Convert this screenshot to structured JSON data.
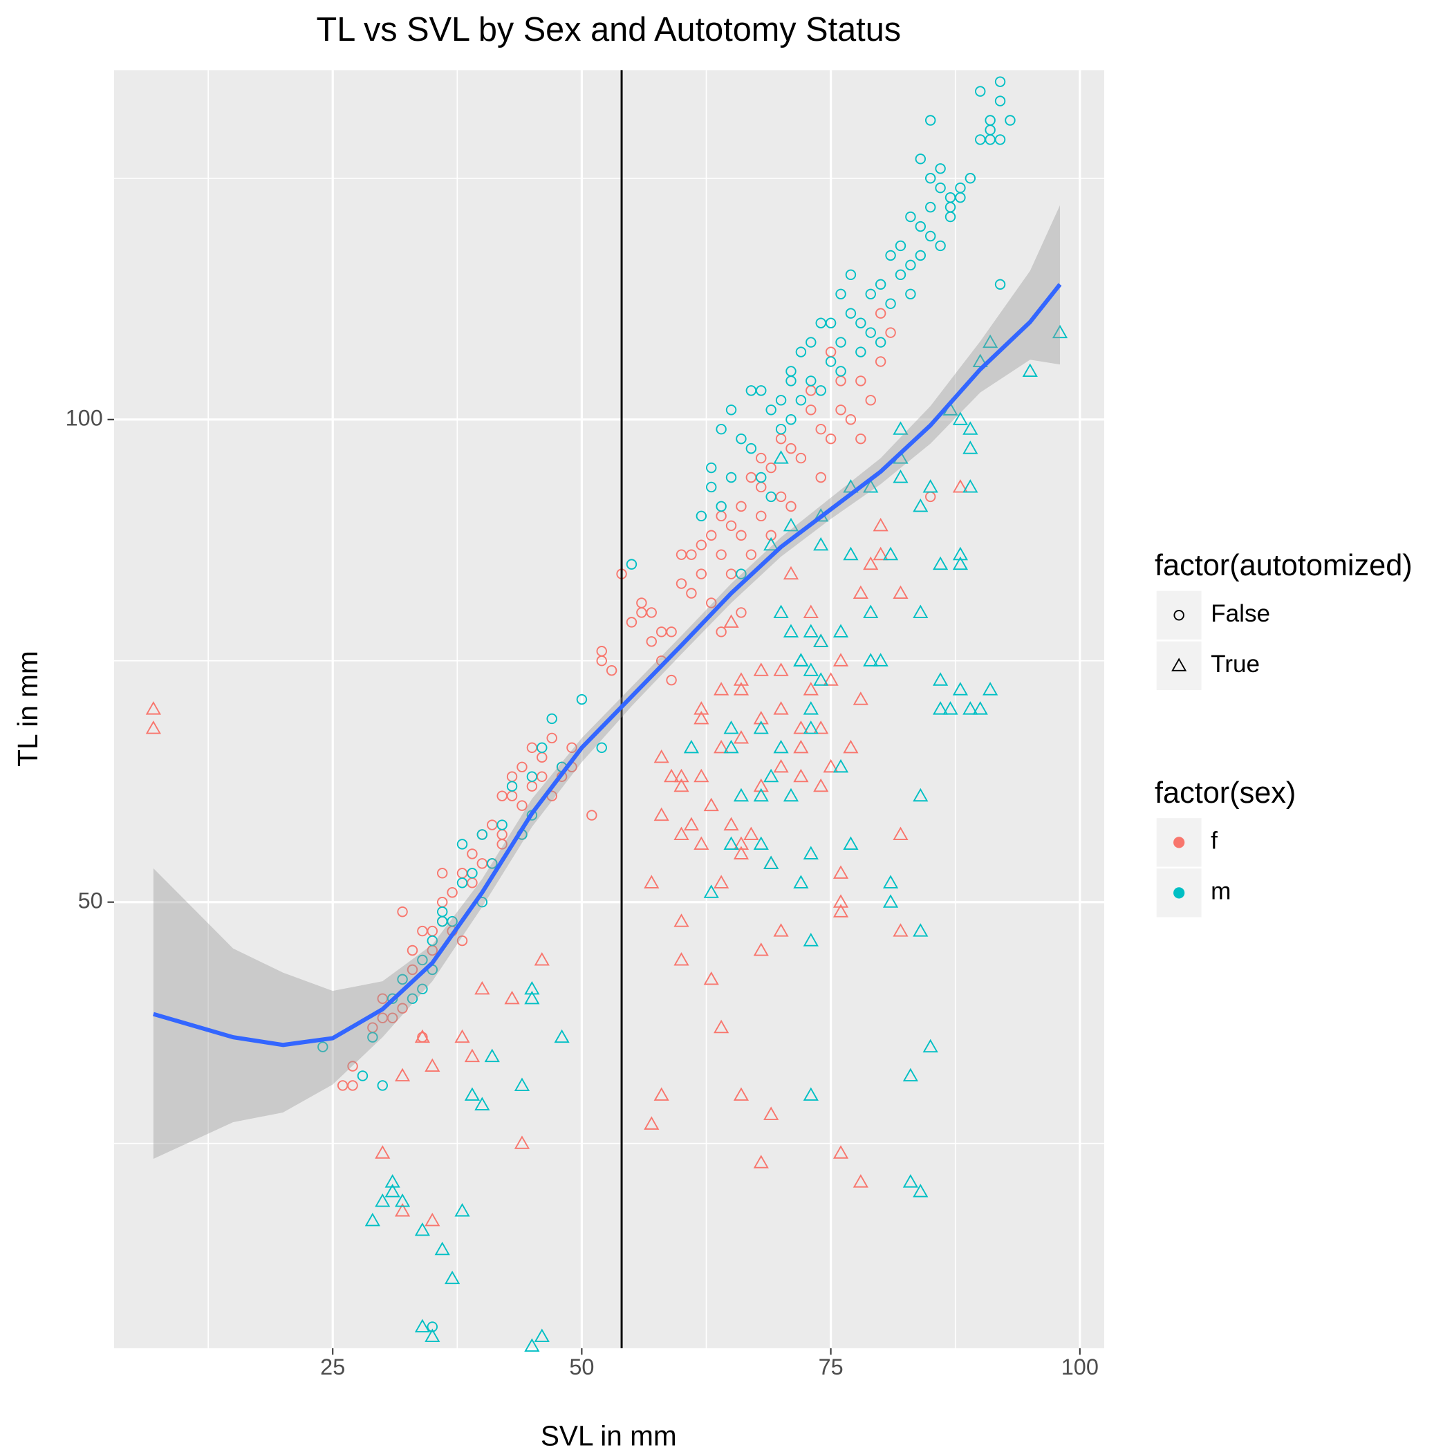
{
  "chart_data": {
    "type": "scatter",
    "title": "TL vs SVL by Sex and Autotomy Status",
    "x_label": "SVL in mm",
    "y_label": "TL in mm",
    "xlim": [
      3.05,
      102.44
    ],
    "ylim": [
      3.78,
      136.2
    ],
    "xticks": [
      25,
      50,
      75,
      100
    ],
    "yticks": [
      50,
      100
    ],
    "grid": true,
    "vline": 54,
    "legends": [
      {
        "title": "factor(autotomized)",
        "entries": [
          {
            "label": "False",
            "shape": "circle"
          },
          {
            "label": "True",
            "shape": "triangle"
          }
        ]
      },
      {
        "title": "factor(sex)",
        "entries": [
          {
            "label": "f",
            "color": "#F8766D"
          },
          {
            "label": "m",
            "color": "#00BFC4"
          }
        ]
      }
    ],
    "series": [
      {
        "color": "#F8766D",
        "shape": "circle",
        "x": [
          26,
          27,
          27,
          29,
          30,
          30,
          31,
          32,
          32,
          33,
          33,
          34,
          34,
          35,
          36,
          36,
          37,
          38,
          39,
          39,
          40,
          40,
          41,
          42,
          42,
          43,
          43,
          44,
          44,
          45,
          45,
          46,
          46,
          47,
          47,
          49,
          51,
          52,
          52,
          53,
          54,
          55,
          56,
          57,
          57,
          58,
          59,
          59,
          60,
          60,
          61,
          61,
          62,
          62,
          63,
          63,
          64,
          64,
          65,
          65,
          66,
          66,
          67,
          67,
          68,
          68,
          69,
          69,
          70,
          70,
          71,
          71,
          72,
          73,
          73,
          74,
          74,
          75,
          75,
          76,
          76,
          77,
          78,
          78,
          79,
          80,
          80,
          81,
          85,
          68,
          66,
          64,
          58,
          56,
          49,
          48,
          37,
          38,
          35,
          48,
          41,
          42,
          44,
          36
        ],
        "y": [
          31,
          31,
          33,
          37,
          38,
          40,
          38,
          39,
          49,
          43,
          45,
          47,
          36,
          45,
          50,
          53,
          51,
          53,
          52,
          55,
          54,
          57,
          58,
          57,
          61,
          61,
          63,
          60,
          64,
          62,
          66,
          63,
          65,
          67,
          61,
          64,
          59,
          75,
          76,
          74,
          84,
          79,
          80,
          80,
          77,
          75,
          78,
          73,
          83,
          86,
          82,
          86,
          84,
          87,
          81,
          88,
          86,
          90,
          84,
          89,
          88,
          91,
          86,
          94,
          90,
          93,
          95,
          88,
          92,
          98,
          91,
          97,
          96,
          101,
          103,
          99,
          94,
          98,
          107,
          104,
          101,
          100,
          104,
          98,
          102,
          106,
          111,
          109,
          92,
          96,
          80,
          78,
          78,
          81,
          66,
          63,
          47,
          46,
          47,
          64,
          54,
          56,
          57,
          48
        ]
      },
      {
        "color": "#F8766D",
        "shape": "triangle",
        "x": [
          7,
          7,
          32,
          30,
          35,
          44,
          32,
          35,
          34,
          38,
          39,
          40,
          43,
          46,
          57,
          58,
          60,
          60,
          63,
          64,
          66,
          68,
          69,
          70,
          68,
          76,
          78,
          76,
          76,
          82,
          82,
          88,
          58,
          61,
          60,
          62,
          64,
          66,
          68,
          70,
          72,
          74,
          74,
          72,
          62,
          64,
          66,
          68,
          70,
          74,
          76,
          78,
          79,
          80,
          73,
          71,
          65,
          58,
          60,
          63,
          65,
          67,
          69,
          64,
          66,
          62,
          60,
          57,
          59,
          76,
          75,
          77,
          62,
          70,
          72,
          66,
          73,
          75,
          66,
          68,
          78,
          80,
          82
        ],
        "y": [
          70,
          68,
          18,
          24,
          17,
          25,
          32,
          33,
          36,
          36,
          34,
          41,
          40,
          44,
          27,
          30,
          48,
          44,
          42,
          37,
          30,
          23,
          28,
          47,
          45,
          24,
          21,
          49,
          50,
          47,
          57,
          93,
          59,
          58,
          62,
          63,
          66,
          67,
          62,
          64,
          66,
          68,
          62,
          68,
          70,
          72,
          72,
          74,
          74,
          77,
          75,
          82,
          85,
          86,
          80,
          84,
          79,
          65,
          63,
          60,
          58,
          57,
          54,
          52,
          55,
          56,
          57,
          52,
          63,
          53,
          64,
          66,
          69,
          70,
          63,
          56,
          72,
          73,
          73,
          69,
          71,
          89,
          82
        ]
      },
      {
        "color": "#00BFC4",
        "shape": "circle",
        "x": [
          24,
          28,
          29,
          30,
          31,
          32,
          33,
          34,
          34,
          35,
          35,
          36,
          36,
          37,
          38,
          38,
          39,
          40,
          40,
          41,
          42,
          43,
          44,
          45,
          45,
          46,
          47,
          48,
          50,
          52,
          55,
          35,
          63,
          64,
          65,
          66,
          67,
          67,
          68,
          68,
          69,
          70,
          70,
          71,
          71,
          72,
          72,
          73,
          73,
          74,
          74,
          75,
          75,
          76,
          76,
          77,
          77,
          78,
          78,
          79,
          79,
          80,
          80,
          81,
          81,
          82,
          82,
          83,
          83,
          83,
          84,
          84,
          85,
          85,
          85,
          86,
          86,
          87,
          87,
          88,
          88,
          89,
          90,
          90,
          91,
          91,
          92,
          92,
          92,
          93,
          91,
          92,
          85,
          84,
          86,
          87,
          66,
          64,
          62,
          63,
          65,
          69,
          71,
          76
        ],
        "y": [
          35,
          32,
          36,
          31,
          40,
          42,
          40,
          44,
          41,
          46,
          43,
          48,
          49,
          48,
          56,
          52,
          53,
          50,
          57,
          54,
          58,
          62,
          57,
          59,
          63,
          66,
          69,
          64,
          71,
          66,
          85,
          6,
          95,
          99,
          101,
          98,
          97,
          103,
          94,
          103,
          101,
          99,
          102,
          105,
          100,
          102,
          107,
          104,
          108,
          103,
          110,
          106,
          110,
          105,
          108,
          111,
          115,
          107,
          110,
          113,
          109,
          108,
          114,
          112,
          117,
          118,
          115,
          116,
          113,
          121,
          120,
          117,
          122,
          125,
          119,
          124,
          118,
          121,
          123,
          123,
          124,
          125,
          129,
          134,
          129,
          130,
          129,
          133,
          135,
          131,
          131,
          114,
          131,
          127,
          126,
          122,
          84,
          91,
          90,
          93,
          94,
          92,
          104,
          113
        ]
      },
      {
        "color": "#00BFC4",
        "shape": "triangle",
        "x": [
          29,
          30,
          31,
          32,
          31,
          34,
          36,
          37,
          35,
          34,
          45,
          46,
          38,
          39,
          40,
          41,
          44,
          45,
          45,
          48,
          63,
          65,
          68,
          69,
          72,
          73,
          73,
          73,
          76,
          77,
          81,
          81,
          84,
          85,
          83,
          83,
          84,
          84,
          84,
          86,
          87,
          88,
          89,
          90,
          91,
          86,
          88,
          88,
          86,
          81,
          77,
          79,
          79,
          80,
          76,
          74,
          74,
          73,
          73,
          71,
          72,
          70,
          68,
          68,
          69,
          71,
          72,
          73,
          74,
          70,
          69,
          71,
          74,
          77,
          79,
          82,
          82,
          84,
          85,
          87,
          88,
          89,
          89,
          89,
          91,
          90,
          95,
          98,
          82,
          70,
          73,
          65,
          66,
          65,
          61
        ],
        "y": [
          17,
          19,
          20,
          19,
          21,
          16,
          14,
          11,
          5,
          6,
          4,
          5,
          18,
          30,
          29,
          34,
          31,
          40,
          41,
          36,
          51,
          56,
          56,
          54,
          52,
          55,
          46,
          30,
          64,
          56,
          52,
          50,
          47,
          35,
          32,
          21,
          20,
          61,
          80,
          70,
          70,
          72,
          70,
          70,
          72,
          73,
          85,
          86,
          85,
          86,
          86,
          80,
          75,
          75,
          78,
          77,
          73,
          74,
          70,
          78,
          75,
          66,
          68,
          61,
          63,
          61,
          75,
          78,
          87,
          80,
          87,
          89,
          90,
          93,
          93,
          96,
          94,
          91,
          93,
          101,
          100,
          99,
          97,
          93,
          108,
          106,
          105,
          109,
          99,
          96,
          68,
          68,
          61,
          66,
          66
        ]
      }
    ],
    "smooth": {
      "color": "#3366FF",
      "x": [
        7,
        15,
        20,
        25,
        30,
        35,
        40,
        45,
        50,
        55,
        60,
        65,
        70,
        75,
        80,
        85,
        90,
        95,
        98
      ],
      "y": [
        38.4,
        36.0,
        35.2,
        35.9,
        38.9,
        43.7,
        51.0,
        59.2,
        66.0,
        71.3,
        76.6,
        82.0,
        86.8,
        90.7,
        94.6,
        99.4,
        105.2,
        110.1,
        114.0
      ],
      "ymin": [
        23.4,
        27.2,
        28.2,
        31.1,
        36.0,
        41.8,
        49.5,
        57.8,
        64.5,
        70.3,
        75.7,
        81.0,
        85.8,
        89.7,
        93.3,
        97.5,
        102.8,
        106.2,
        105.7
      ],
      "ymax": [
        53.5,
        45.2,
        42.7,
        40.8,
        41.8,
        45.6,
        52.4,
        60.7,
        67.0,
        72.3,
        77.6,
        83.0,
        87.8,
        91.9,
        96.0,
        101.4,
        108.1,
        115.4,
        122.2
      ]
    }
  }
}
